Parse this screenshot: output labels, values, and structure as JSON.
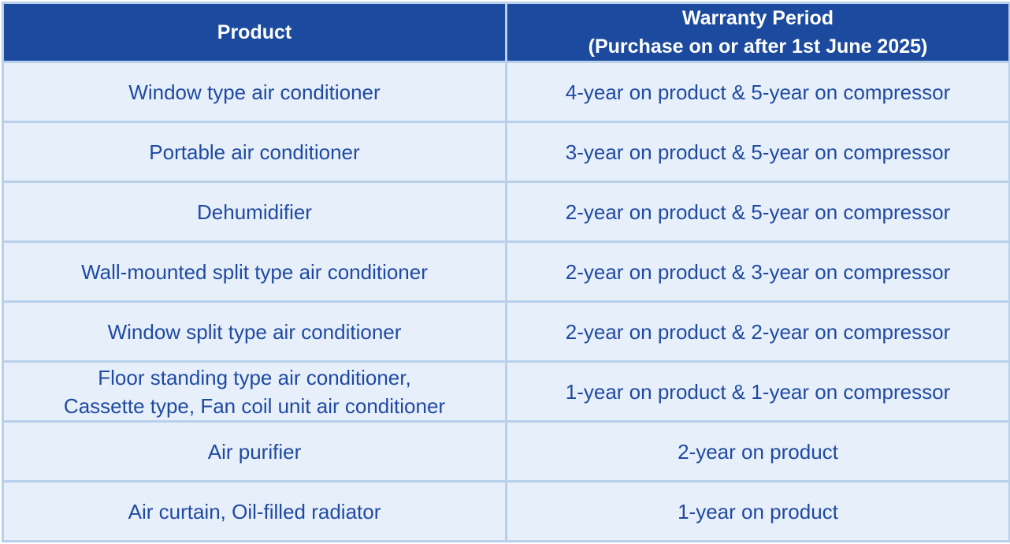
{
  "table": {
    "header": [
      "Product",
      [
        "Warranty Period",
        "(Purchase on or after 1st June 2025)"
      ]
    ],
    "rows": [
      [
        "Window type air conditioner",
        "4-year on product & 5-year on compressor"
      ],
      [
        "Portable air conditioner",
        "3-year on product & 5-year on compressor"
      ],
      [
        "Dehumidifier",
        "2-year on product & 5-year on compressor"
      ],
      [
        "Wall-mounted split type air conditioner",
        "2-year on product & 3-year on compressor"
      ],
      [
        "Window split type air conditioner",
        "2-year on product & 2-year on compressor"
      ],
      [
        [
          "Floor standing type air conditioner,",
          "Cassette type, Fan coil unit air conditioner"
        ],
        "1-year on product & 1-year on compressor"
      ],
      [
        "Air purifier",
        "2-year on product"
      ],
      [
        "Air curtain, Oil-filled radiator",
        "1-year on product"
      ]
    ]
  }
}
